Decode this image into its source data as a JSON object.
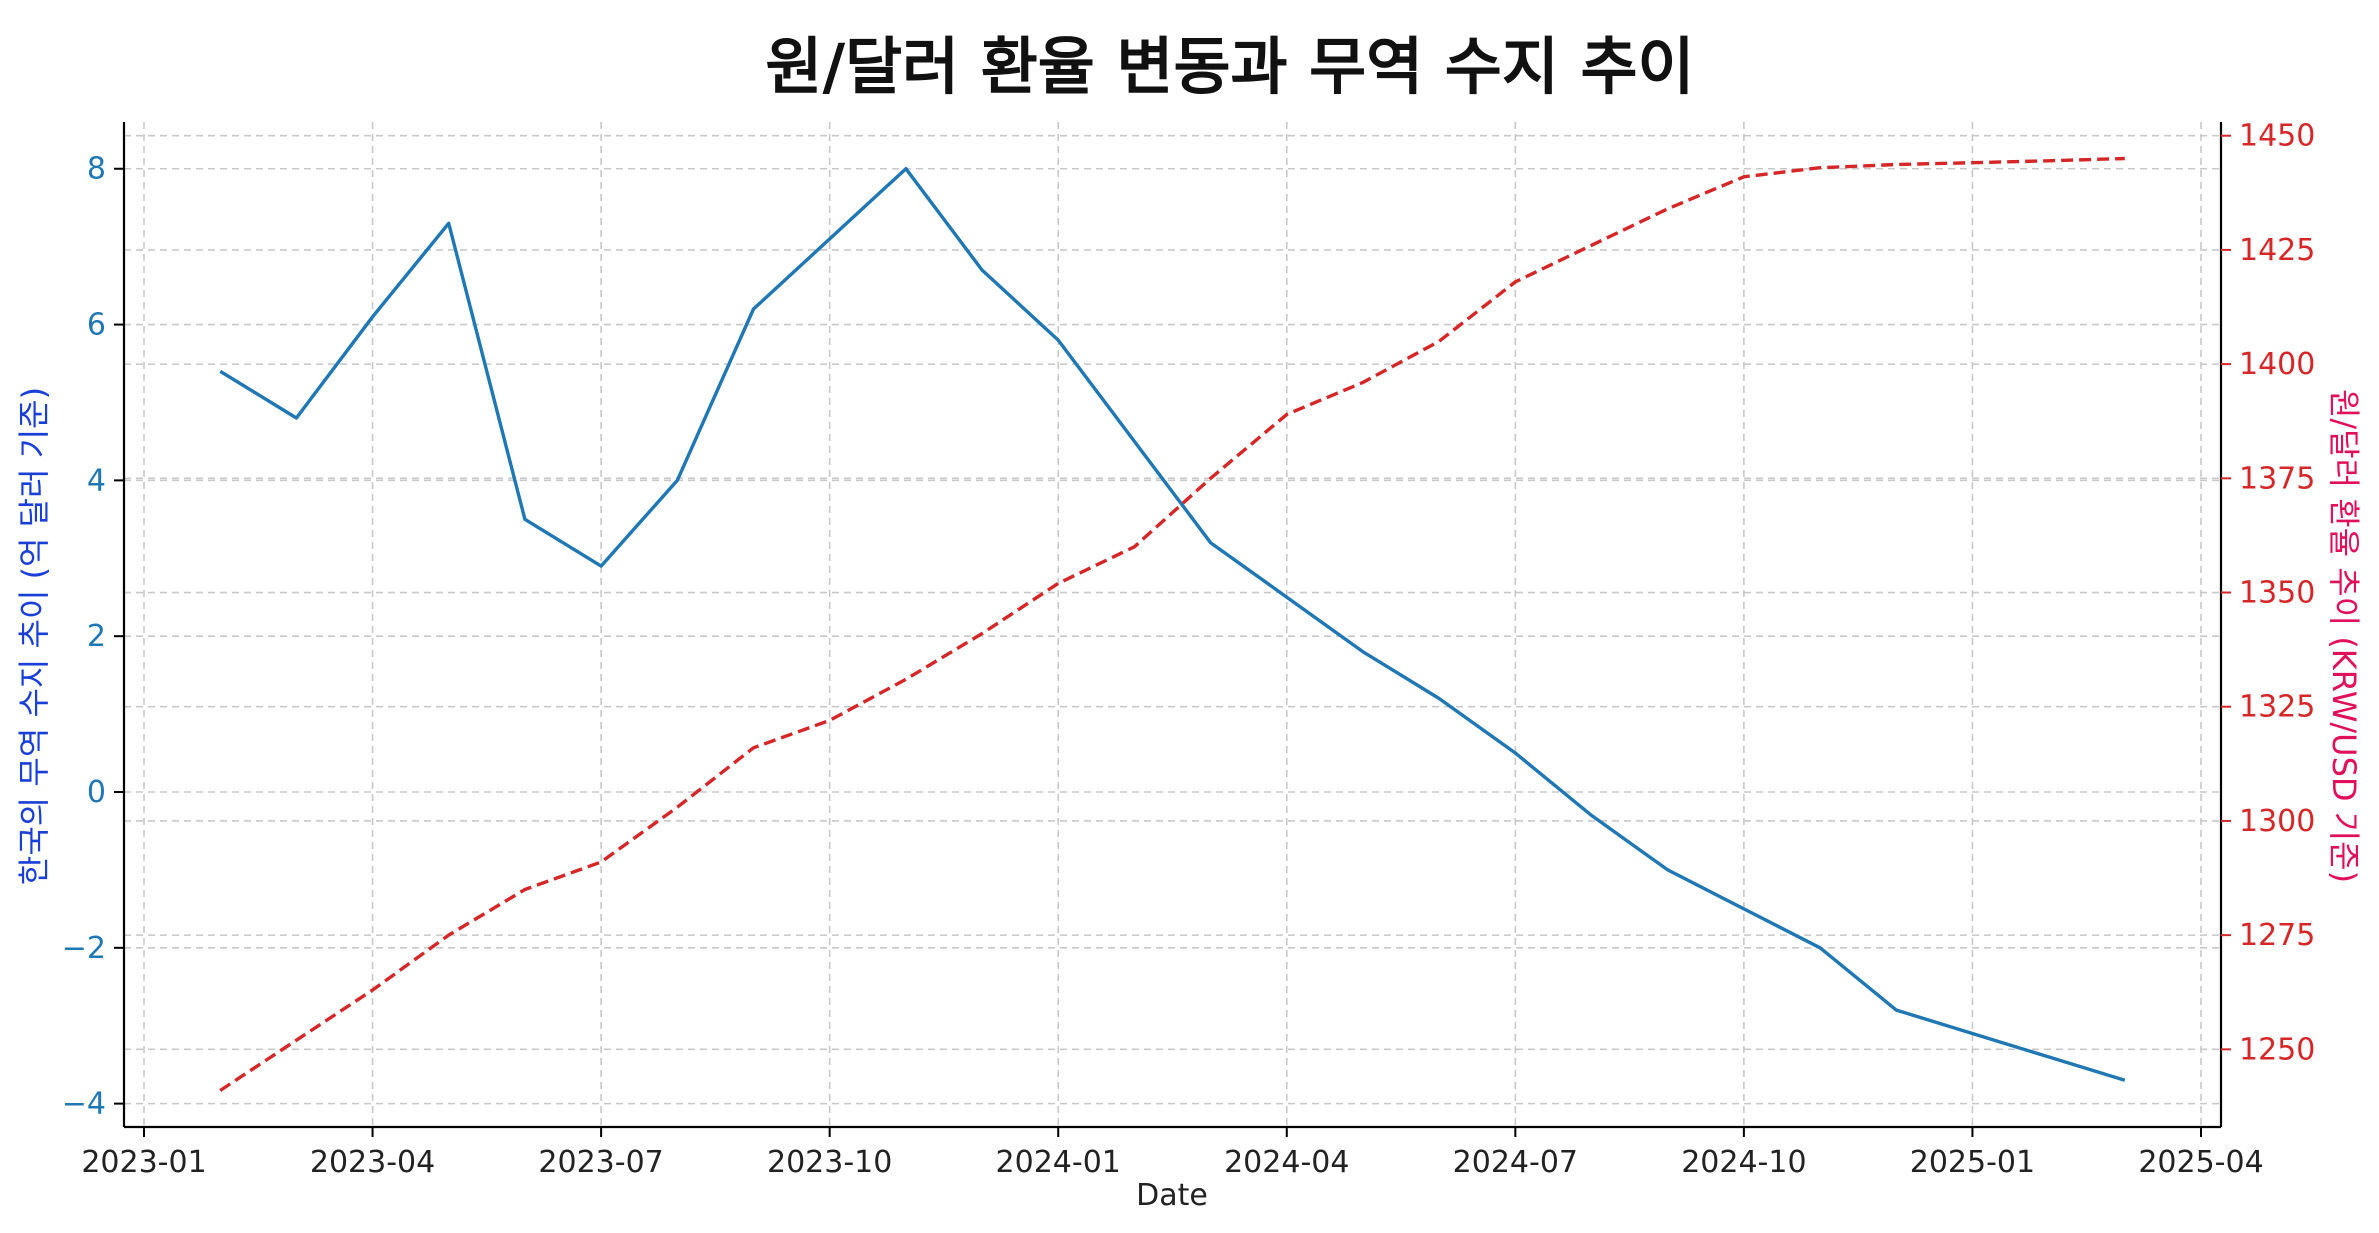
{
  "chart_data": {
    "type": "line",
    "title": "원/달러 환율 변동과 무역 수지 추이",
    "xlabel": "Date",
    "ylabel_left": "한국의 무역 수지 추이 (억 달러 기준)",
    "ylabel_right": "원/달러 환율 추이 (KRW/USD 기준)",
    "x_ticks": [
      "2023-01",
      "2023-04",
      "2023-07",
      "2023-10",
      "2024-01",
      "2024-04",
      "2024-07",
      "2024-10",
      "2025-01",
      "2025-04"
    ],
    "x_range": [
      "2023-01",
      "2025-04"
    ],
    "ylim_left": [
      -4.3,
      8.6
    ],
    "ylim_right": [
      1233,
      1453
    ],
    "yticks_left": [
      -4,
      -2,
      0,
      2,
      4,
      6,
      8
    ],
    "yticks_right": [
      1250,
      1275,
      1300,
      1325,
      1350,
      1375,
      1400,
      1425,
      1450
    ],
    "grid": true,
    "x": [
      "2023-02",
      "2023-03",
      "2023-04",
      "2023-05",
      "2023-06",
      "2023-07",
      "2023-08",
      "2023-09",
      "2023-10",
      "2023-11",
      "2023-12",
      "2024-01",
      "2024-02",
      "2024-03",
      "2024-04",
      "2024-05",
      "2024-06",
      "2024-07",
      "2024-08",
      "2024-09",
      "2024-10",
      "2024-11",
      "2024-12",
      "2025-01",
      "2025-02",
      "2025-03"
    ],
    "series": [
      {
        "axis": "left",
        "style": "solid",
        "color": "#1f77b4",
        "values": [
          5.4,
          4.8,
          6.1,
          7.3,
          3.5,
          2.9,
          4.0,
          6.2,
          7.1,
          8.0,
          6.7,
          5.8,
          4.5,
          3.2,
          2.5,
          1.8,
          1.2,
          0.5,
          -0.3,
          -1.0,
          -1.5,
          -2.0,
          -2.8,
          -3.1,
          -3.4,
          -3.7
        ]
      },
      {
        "axis": "right",
        "style": "dashed",
        "color": "#d62728",
        "values": [
          1241,
          1252,
          1263,
          1275,
          1285,
          1291,
          1303,
          1316,
          1322,
          1331,
          1341,
          1352,
          1360,
          1375,
          1389,
          1396,
          1405,
          1418,
          1426,
          1434,
          1441,
          1443,
          1443.7,
          1444.1,
          1444.5,
          1445
        ]
      }
    ]
  }
}
